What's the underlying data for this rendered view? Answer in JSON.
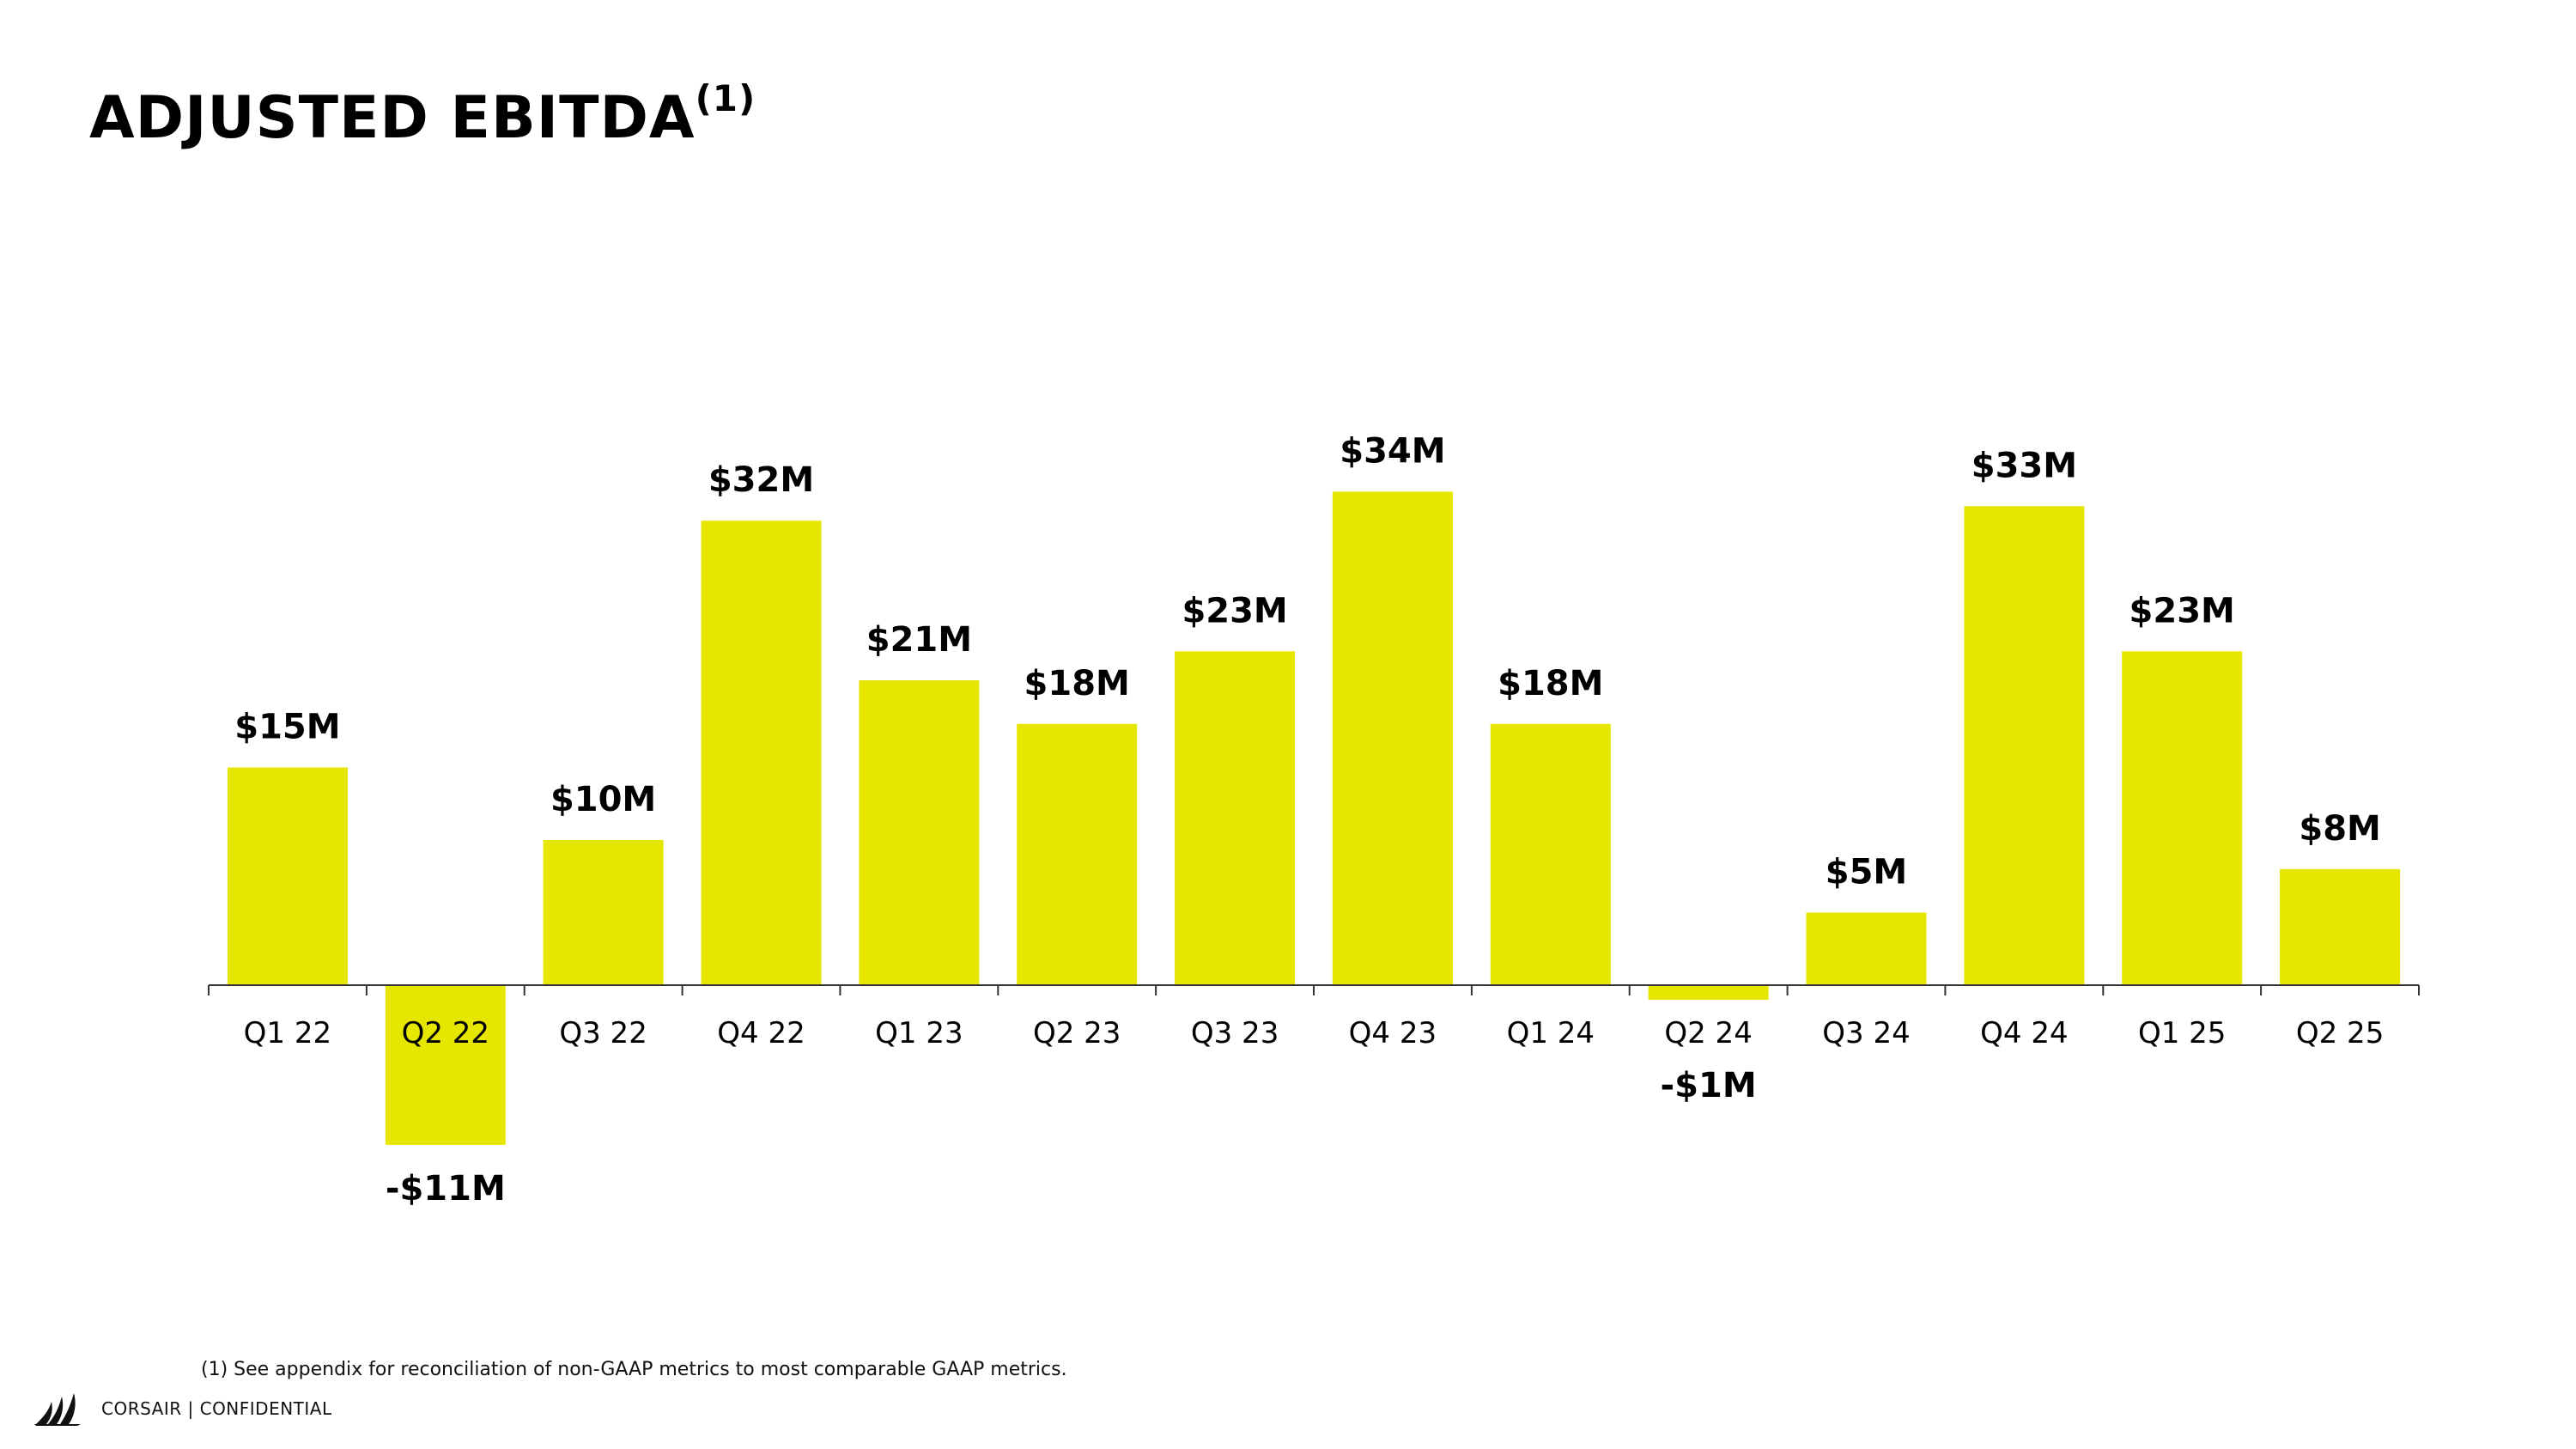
{
  "title": {
    "text": "ADJUSTED EBITDA",
    "superscript": "(1)"
  },
  "chart_data": {
    "type": "bar",
    "title": "ADJUSTED EBITDA(1)",
    "xlabel": "",
    "ylabel": "",
    "categories": [
      "Q1 22",
      "Q2 22",
      "Q3 22",
      "Q4 22",
      "Q1 23",
      "Q2 23",
      "Q3 23",
      "Q4 23",
      "Q1 24",
      "Q2 24",
      "Q3 24",
      "Q4 24",
      "Q1 25",
      "Q2 25"
    ],
    "values": [
      15,
      -11,
      10,
      32,
      21,
      18,
      23,
      34,
      18,
      -1,
      5,
      33,
      23,
      8
    ],
    "value_labels": [
      "$15M",
      "-$11M",
      "$10M",
      "$32M",
      "$21M",
      "$18M",
      "$23M",
      "$34M",
      "$18M",
      "-$1M",
      "$5M",
      "$33M",
      "$23M",
      "$8M"
    ],
    "unit": "$M",
    "ylim": [
      -11,
      34
    ],
    "bar_color": "#E6E600",
    "grid": false,
    "legend": "none"
  },
  "footnote": "(1) See appendix for reconciliation of non-GAAP metrics to most comparable GAAP metrics.",
  "footer": {
    "logo_icon": "corsair-sails-logo-icon",
    "text": "CORSAIR | CONFIDENTIAL"
  }
}
